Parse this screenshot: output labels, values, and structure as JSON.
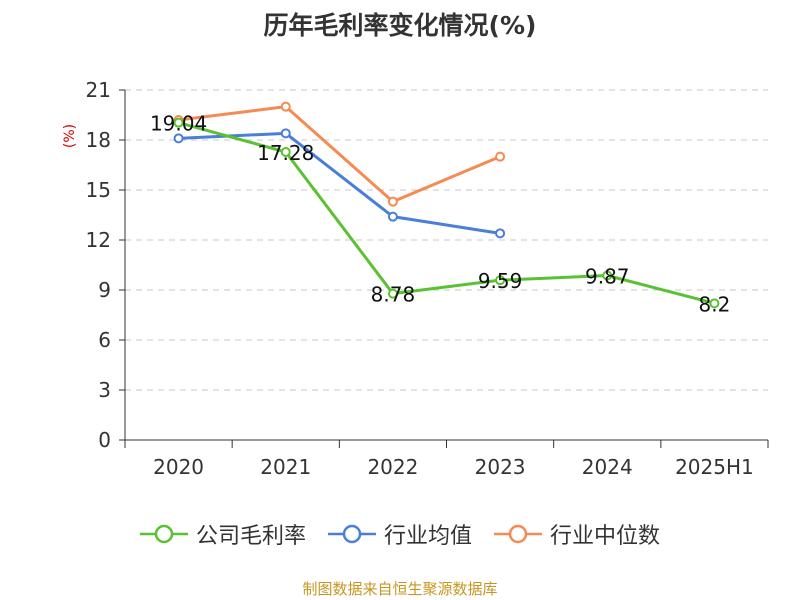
{
  "chart_data": {
    "type": "line",
    "title": "历年毛利率变化情况(%)",
    "ylabel": "(%)",
    "xlabel": "",
    "categories": [
      "2020",
      "2021",
      "2022",
      "2023",
      "2024",
      "2025H1"
    ],
    "ylim": [
      0,
      21
    ],
    "yticks": [
      0,
      3,
      6,
      9,
      12,
      15,
      18,
      21
    ],
    "grid": true,
    "legend_position": "bottom",
    "series": [
      {
        "name": "公司毛利率",
        "color": "#5ac232",
        "values": [
          19.04,
          17.28,
          8.78,
          9.59,
          9.87,
          8.2
        ],
        "labels": [
          "19.04",
          "17.28",
          "8.78",
          "9.59",
          "9.87",
          "8.2"
        ]
      },
      {
        "name": "行业均值",
        "color": "#4a7fd8",
        "values": [
          18.1,
          18.4,
          13.4,
          12.4,
          null,
          null
        ]
      },
      {
        "name": "行业中位数",
        "color": "#f58a55",
        "values": [
          19.2,
          20.0,
          14.3,
          17.0,
          null,
          null
        ]
      }
    ]
  },
  "source_note": "制图数据来自恒生聚源数据库"
}
